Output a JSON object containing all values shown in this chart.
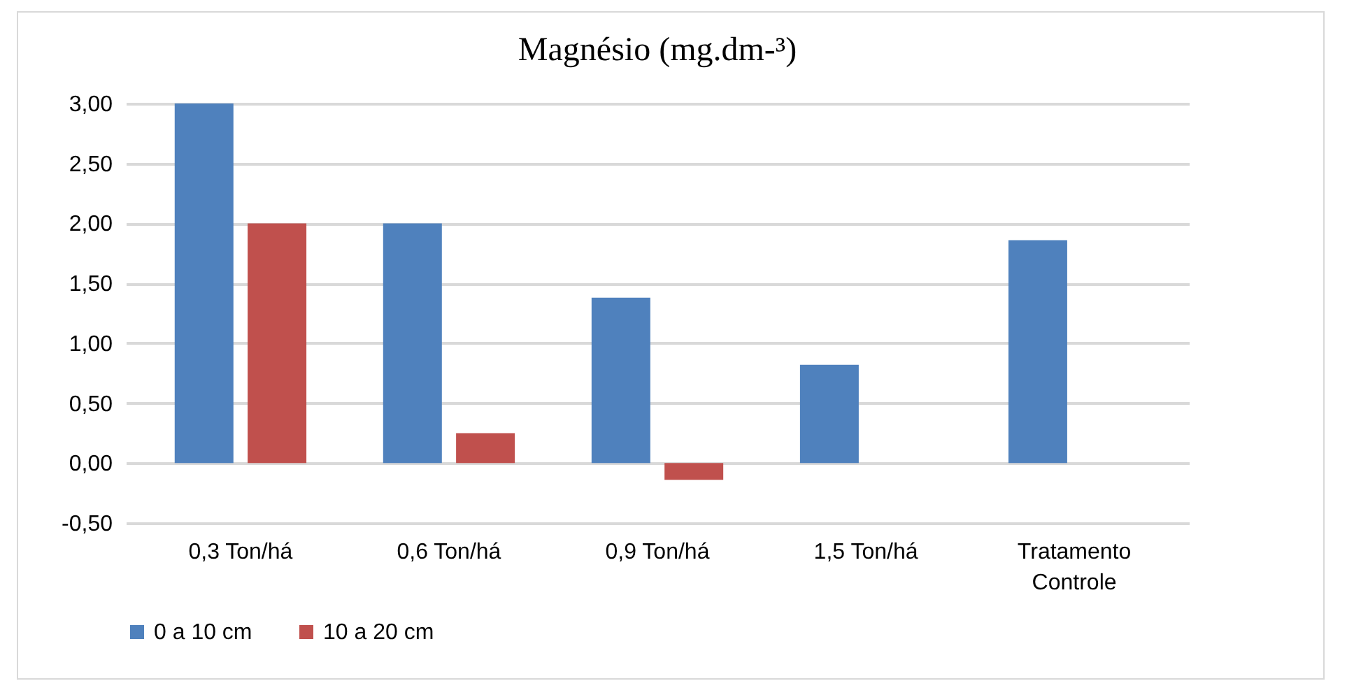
{
  "chart_data": {
    "type": "bar",
    "title": "Magnésio (mg.dm-³)",
    "categories": [
      "0,3 Ton/há",
      "0,6 Ton/há",
      "0,9 Ton/há",
      "1,5 Ton/há",
      "Tratamento Controle"
    ],
    "series": [
      {
        "name": "0 a 10 cm",
        "color": "#4f81bd",
        "values": [
          3.0,
          2.0,
          1.38,
          0.82,
          1.86
        ]
      },
      {
        "name": "10 a 20 cm",
        "color": "#c0504d",
        "values": [
          2.0,
          0.25,
          -0.14,
          0,
          0
        ]
      }
    ],
    "ylim": [
      -0.5,
      3.0
    ],
    "yticks": [
      {
        "value": -0.5,
        "label": "-0,50"
      },
      {
        "value": 0,
        "label": "0,00"
      },
      {
        "value": 0.5,
        "label": "0,50"
      },
      {
        "value": 1,
        "label": "1,00"
      },
      {
        "value": 1.5,
        "label": "1,50"
      },
      {
        "value": 2,
        "label": "2,00"
      },
      {
        "value": 2.5,
        "label": "2,50"
      },
      {
        "value": 3,
        "label": "3,00"
      }
    ],
    "grid": "y",
    "legend": "bottom"
  }
}
